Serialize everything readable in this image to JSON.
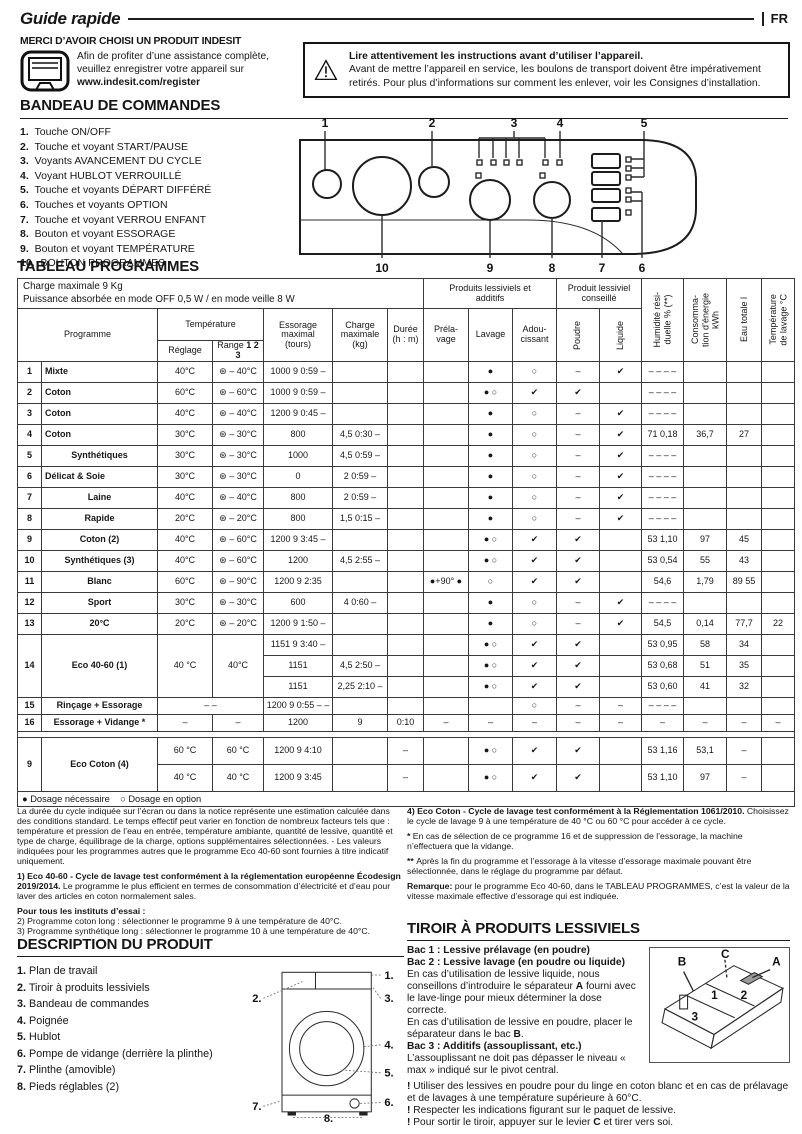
{
  "page": {
    "title": "Guide rapide",
    "lang_badge": "FR"
  },
  "intro": {
    "brand_line": "MERCI D’AVOIR CHOISI UN PRODUIT INDESIT",
    "register_text": "Afin de profiter d’une assistance complète,\nveuillez enregistrer votre appareil sur\n",
    "register_url": "www.indesit.com/register"
  },
  "warning": {
    "line1": "Lire attentivement les instructions avant d’utiliser l’appareil.",
    "line2": "Avant de mettre l’appareil en service, les boulons de transport doivent être impérativement retirés. Pour plus d’informations sur comment les enlever, voir les Consignes d’installation."
  },
  "sections": {
    "bandeau": "BANDEAU DE COMMANDES",
    "tableau": "TABLEAU PROGRAMMES",
    "description": "DESCRIPTION DU PRODUIT",
    "tiroir": "TIROIR À PRODUITS LESSIVIELS"
  },
  "bandeau": {
    "items": [
      {
        "n": "1.",
        "t": "Touche ON/OFF"
      },
      {
        "n": "2.",
        "t": "Touche et voyant START/PAUSE"
      },
      {
        "n": "3.",
        "t": "Voyants AVANCEMENT DU CYCLE"
      },
      {
        "n": "4.",
        "t": "Voyant HUBLOT VERROUILLÉ"
      },
      {
        "n": "5.",
        "t": "Touche et voyants DÉPART DIFFÉRÉ"
      },
      {
        "n": "6.",
        "t": "Touches et voyants OPTION"
      },
      {
        "n": "7.",
        "t": "Touche et voyant VERROU ENFANT"
      },
      {
        "n": "8.",
        "t": "Bouton et voyant ESSORAGE"
      },
      {
        "n": "9.",
        "t": "Bouton et voyant TEMPÉRATURE"
      },
      {
        "n": "10.",
        "t": "BOUTON PROGRAMMES"
      }
    ]
  },
  "panel": {
    "callouts_top": [
      "1",
      "2",
      "3",
      "4",
      "5"
    ],
    "callouts_bottom": [
      "10",
      "9",
      "8",
      "7",
      "6"
    ]
  },
  "table": {
    "info": "Charge maximale 9 Kg\nPuissance absorbée en mode OFF 0,5 W / en mode veille 8 W",
    "headers": {
      "programme": "Programme",
      "temperature": "Température",
      "reglage": "Réglage",
      "range": "Range ",
      "range_bold": "1 2 3",
      "essorage": "Essorage\nmaximal\n(tours)",
      "charge": "Charge\nmaximale\n(kg)",
      "duree": "Durée\n(h : m)",
      "produits": "Produits lessiviels et\nadditifs",
      "prelavage": "Préla-\nvage",
      "lavage": "Lavage",
      "adoucissant": "Adou-\ncissant",
      "conseille": "Produit lessiviel\nconseillé",
      "poudre": "Poudre",
      "liquide": "Liquide",
      "humidite": "Humidité rési-\nduelle % (**)",
      "consommation": "Consomma-\ntion d’énergie\nkWh",
      "eau": "Eau totale l",
      "temp_lavage": "Température\nde lavage °C"
    },
    "body": [
      {
        "cells": [
          {
            "t": "1",
            "cls": "b"
          },
          {
            "t": "Mixte",
            "cls": "b l"
          },
          "40°C",
          "⊛ – 40°C",
          {
            "t": "1000 9 0:59 –",
            "cls": "sp"
          },
          "",
          "",
          "",
          "●",
          "○",
          "–",
          "✔",
          {
            "t": "– – – –",
            "cls": "sp"
          },
          "",
          "",
          ""
        ]
      },
      {
        "cells": [
          {
            "t": "2",
            "cls": "b"
          },
          {
            "t": "Coton",
            "cls": "b l"
          },
          "60°C",
          "⊛ – 60°C",
          {
            "t": "1000 9 0:59 –",
            "cls": "sp"
          },
          "",
          "",
          "",
          {
            "t": "● ○",
            "cls": "sp"
          },
          "✔",
          "✔",
          "",
          {
            "t": "– – – –",
            "cls": "sp"
          },
          "",
          "",
          ""
        ]
      },
      {
        "cells": [
          {
            "t": "3",
            "cls": "b"
          },
          {
            "t": "Coton",
            "cls": "b l"
          },
          "40°C",
          "⊛ – 40°C",
          {
            "t": "1200 9 0:45 –",
            "cls": "sp"
          },
          "",
          "",
          "",
          "●",
          "○",
          "–",
          "✔",
          {
            "t": "– – – –",
            "cls": "sp"
          },
          "",
          "",
          ""
        ]
      },
      {
        "cells": [
          {
            "t": "4",
            "cls": "b"
          },
          {
            "t": "Coton",
            "cls": "b l"
          },
          "30°C",
          "⊛ – 30°C",
          "800",
          {
            "t": "4,5 0:30 –",
            "cls": "sp"
          },
          "",
          "",
          "●",
          "○",
          "–",
          "✔",
          {
            "t": "71 0,18",
            "cls": "sp"
          },
          "36,7",
          "27",
          ""
        ]
      },
      {
        "cells": [
          {
            "t": "5",
            "cls": "b"
          },
          {
            "t": "Synthétiques",
            "cls": "b"
          },
          "30°C",
          "⊛ – 30°C",
          "1000",
          {
            "t": "4,5 0:59 –",
            "cls": "sp"
          },
          "",
          "",
          "●",
          "○",
          "–",
          "✔",
          {
            "t": "– – – –",
            "cls": "sp"
          },
          "",
          "",
          ""
        ]
      },
      {
        "cells": [
          {
            "t": "6",
            "cls": "b"
          },
          {
            "t": "Délicat & Soie",
            "cls": "b l"
          },
          "30°C",
          "⊛ – 30°C",
          "0",
          {
            "t": "2 0:59 –",
            "cls": "sp"
          },
          "",
          "",
          "●",
          "○",
          "–",
          "✔",
          {
            "t": "– – – –",
            "cls": "sp"
          },
          "",
          "",
          ""
        ]
      },
      {
        "cells": [
          {
            "t": "7",
            "cls": "b"
          },
          {
            "t": "Laine",
            "cls": "b"
          },
          "40°C",
          "⊛ – 40°C",
          "800",
          {
            "t": "2 0:59 –",
            "cls": "sp"
          },
          "",
          "",
          "●",
          "○",
          "–",
          "✔",
          {
            "t": "– – – –",
            "cls": "sp"
          },
          "",
          "",
          ""
        ]
      },
      {
        "cells": [
          {
            "t": "8",
            "cls": "b"
          },
          {
            "t": "Rapide",
            "cls": "b"
          },
          "20°C",
          "⊛ – 20°C",
          "800",
          {
            "t": "1,5 0:15 –",
            "cls": "sp"
          },
          "",
          "",
          "●",
          "○",
          "–",
          "✔",
          {
            "t": "– – – –",
            "cls": "sp"
          },
          "",
          "",
          ""
        ]
      },
      {
        "cells": [
          {
            "t": "9",
            "cls": "b"
          },
          {
            "t": "Coton (2)",
            "cls": "b"
          },
          "40°C",
          "⊛ – 60°C",
          {
            "t": "1200 9 3:45 –",
            "cls": "sp"
          },
          "",
          "",
          "",
          {
            "t": "● ○",
            "cls": "sp"
          },
          "✔",
          "✔",
          "",
          {
            "t": "53 1,10",
            "cls": "sp"
          },
          "97",
          "45",
          ""
        ]
      },
      {
        "cells": [
          {
            "t": "10",
            "cls": "b"
          },
          {
            "t": "Synthétiques (3)",
            "cls": "b"
          },
          "40°C",
          "⊛ – 60°C",
          "1200",
          {
            "t": "4,5 2:55 –",
            "cls": "sp"
          },
          "",
          "",
          {
            "t": "● ○",
            "cls": "sp"
          },
          "✔",
          "✔",
          "",
          {
            "t": "53 0,54",
            "cls": "sp"
          },
          "55",
          "43",
          ""
        ]
      },
      {
        "cells": [
          {
            "t": "11",
            "cls": "b"
          },
          {
            "t": "Blanc",
            "cls": "b"
          },
          "60°C",
          "⊛ – 90°C",
          {
            "t": "1200 9 2:35",
            "cls": "sp"
          },
          "",
          "",
          {
            "t": "●+90° ●",
            "cls": "sp"
          },
          "○",
          "✔",
          "✔",
          "",
          "54,6",
          "1,79",
          {
            "t": "89 55",
            "cls": "sp"
          },
          ""
        ]
      },
      {
        "cells": [
          {
            "t": "12",
            "cls": "b"
          },
          {
            "t": "Sport",
            "cls": "b"
          },
          "30°C",
          "⊛ – 30°C",
          "600",
          {
            "t": "4 0:60 –",
            "cls": "sp"
          },
          "",
          "",
          "●",
          "○",
          "–",
          "✔",
          {
            "t": "– – – –",
            "cls": "sp"
          },
          "",
          "",
          ""
        ]
      },
      {
        "cells": [
          {
            "t": "13",
            "cls": "b"
          },
          {
            "t": "20°C",
            "cls": "b"
          },
          "20°C",
          "⊛ – 20°C",
          {
            "t": "1200 9 1:50 –",
            "cls": "sp"
          },
          "",
          "",
          "",
          "●",
          "○",
          "–",
          "✔",
          "54,5",
          "0,14",
          "77,7",
          "22"
        ]
      },
      {
        "cells": [
          {
            "t": "14",
            "cls": "b",
            "rs": 3
          },
          {
            "t": "Eco 40-60 (1)",
            "cls": "b",
            "rs": 3
          },
          {
            "t": "40 °C",
            "rs": 3
          },
          {
            "t": "40°C",
            "rs": 3
          },
          {
            "t": "1151 9 3:40 –",
            "cls": "sp"
          },
          "",
          "",
          "",
          {
            "t": "● ○",
            "cls": "sp"
          },
          "✔",
          "✔",
          "",
          {
            "t": "53 0,95",
            "cls": "sp"
          },
          "58",
          "34",
          ""
        ]
      },
      {
        "cells": [
          "1151",
          {
            "t": "4,5 2:50 –",
            "cls": "sp"
          },
          "",
          "",
          {
            "t": "● ○",
            "cls": "sp"
          },
          "✔",
          "✔",
          "",
          {
            "t": "53 0,68",
            "cls": "sp"
          },
          "51",
          "35",
          ""
        ]
      },
      {
        "cells": [
          "1151",
          {
            "t": "2,25 2:10 –",
            "cls": "sp"
          },
          "",
          "",
          {
            "t": "● ○",
            "cls": "sp"
          },
          "✔",
          "✔",
          "",
          {
            "t": "53 0,60",
            "cls": "sp"
          },
          "41",
          "32",
          ""
        ]
      },
      {
        "cls": "short",
        "cells": [
          {
            "t": "15",
            "cls": "b"
          },
          {
            "t": "Rinçage + Essorage",
            "cls": "b"
          },
          {
            "t": "– –",
            "cs": 2
          },
          {
            "t": "1200 9 0:55 – –",
            "cls": "sp"
          },
          "",
          "",
          "",
          "",
          "○",
          "–",
          "–",
          {
            "t": "– – – –",
            "cls": "sp"
          },
          "",
          "",
          ""
        ]
      },
      {
        "cls": "short",
        "cells": [
          {
            "t": "16",
            "cls": "b"
          },
          {
            "t": "Essorage + Vidange *",
            "cls": "b"
          },
          "–",
          "–",
          "1200",
          "9",
          "0:10",
          "–",
          "–",
          "–",
          "–",
          "–",
          "–",
          "–",
          "–",
          "–"
        ]
      },
      {
        "cls": "gap",
        "cells": [
          {
            "t": "",
            "cs": 16
          }
        ]
      },
      {
        "cls": "tall",
        "cells": [
          {
            "t": "9",
            "cls": "b",
            "rs": 2
          },
          {
            "t": "Eco Coton (4)",
            "cls": "b",
            "rs": 2
          },
          "60 °C",
          "60 °C",
          {
            "t": "1200 9 4:10",
            "cls": "sp"
          },
          "",
          "–",
          "",
          {
            "t": "● ○",
            "cls": "sp"
          },
          "✔",
          "✔",
          "",
          {
            "t": "53 1,16",
            "cls": "sp"
          },
          "53,1",
          "–",
          ""
        ]
      },
      {
        "cls": "tall",
        "cells": [
          "40 °C",
          "40 °C",
          {
            "t": "1200 9 3:45",
            "cls": "sp"
          },
          "",
          "–",
          "",
          {
            "t": "● ○",
            "cls": "sp"
          },
          "✔",
          "✔",
          "",
          {
            "t": "53 1,10",
            "cls": "sp"
          },
          "97",
          "–",
          ""
        ]
      },
      {
        "cls": "legendrow",
        "cells": [
          {
            "t": "● Dosage nécessaire    ○ Dosage en option",
            "cs": 16
          }
        ]
      }
    ]
  },
  "footnotes_left": [
    {
      "segs": [
        {
          "t": "La durée du cycle indiquée sur l’écran ou dans la notice représente une estimation calculée dans des conditions standard. Le temps effectif peut varier en fonction de nombreux facteurs tels que : température et pression de l’eau en entrée, température ambiante, quantité de lessive, quantité et type de charge, équilibrage de la charge, options supplémentaires sélectionnées. - Les valeurs indiquées pour les programmes autres que le programme Eco 40-60 sont fournies à titre indicatif uniquement."
        }
      ]
    },
    {
      "cls": "mt",
      "segs": [
        {
          "t": "1) Eco 40-60 - Cycle de lavage test conformément à la réglementation européenne Écodesign 2019/2014.",
          "b": true
        },
        {
          "t": " Le programme le plus efficient en termes de consommation d’électricité et d’eau pour laver des articles en coton normalement sales."
        }
      ]
    },
    {
      "cls": "mt",
      "segs": [
        {
          "t": "Pour tous les instituts d’essai :",
          "b": true
        }
      ]
    },
    {
      "segs": [
        {
          "t": "2)  Programme coton long : sélectionner le programme 9 à une température de 40°C."
        }
      ]
    },
    {
      "segs": [
        {
          "t": "3)  Programme synthétique long : sélectionner le programme 10 à une température de 40°C."
        }
      ]
    }
  ],
  "footnotes_right": [
    {
      "segs": [
        {
          "t": "4) Eco Coton -  Cycle de lavage test conformément à la Réglementation 1061/2010.",
          "b": true
        },
        {
          "t": " Choisissez le cycle de lavage 9 à une température de 40 °C ou 60 °C pour accéder à ce cycle."
        }
      ]
    },
    {
      "cls": "mt",
      "segs": [
        {
          "t": "* ",
          "b": true
        },
        {
          "t": "En cas de sélection de ce programme 16 et de suppression de l’essorage, la machine n’effectuera que la vidange."
        }
      ]
    },
    {
      "cls": "mt",
      "segs": [
        {
          "t": "** ",
          "b": true
        },
        {
          "t": "Après la fin du programme et l’essorage à la vitesse d’essorage maximale pouvant être sélectionnée, dans le réglage du programme par défaut."
        }
      ]
    },
    {
      "cls": "mt",
      "segs": [
        {
          "t": "Remarque:",
          "b": true
        },
        {
          "t": " pour le programme Eco 40-60, dans le TABLEAU PROGRAMMES, c’est la valeur de la vitesse maximale effective d’essorage qui est indiquée."
        }
      ]
    }
  ],
  "description": {
    "items": [
      {
        "n": "1.",
        "t": "Plan de travail"
      },
      {
        "n": "2.",
        "t": "Tiroir à produits lessiviels"
      },
      {
        "n": "3.",
        "t": "Bandeau de commandes"
      },
      {
        "n": "4.",
        "t": "Poignée"
      },
      {
        "n": "5.",
        "t": "Hublot"
      },
      {
        "n": "6.",
        "t": "Pompe de vidange (derrière la plinthe)"
      },
      {
        "n": "7.",
        "t": "Plinthe (amovible)"
      },
      {
        "n": "8.",
        "t": "Pieds réglables (2)"
      }
    ],
    "callouts": [
      "1.",
      "2.",
      "3.",
      "4.",
      "5.",
      "6.",
      "7.",
      "8."
    ]
  },
  "tiroir": {
    "paras": [
      {
        "segs": [
          {
            "t": "Bac 1 : Lessive prélavage (en poudre)",
            "b": true
          }
        ]
      },
      {
        "segs": [
          {
            "t": "Bac 2 : Lessive lavage (en poudre ou liquide)",
            "b": true
          }
        ]
      },
      {
        "segs": [
          {
            "t": "En cas d’utilisation de lessive liquide, nous conseillons d’introduire le séparateur "
          },
          {
            "t": "A",
            "b": true
          },
          {
            "t": " fourni avec le lave-linge pour mieux déterminer la dose correcte."
          }
        ]
      },
      {
        "segs": [
          {
            "t": "En cas d’utilisation de lessive en poudre, placer le séparateur dans le bac "
          },
          {
            "t": "B",
            "b": true
          },
          {
            "t": "."
          }
        ]
      },
      {
        "segs": [
          {
            "t": "Bac 3 : Additifs (assouplissant, etc.)",
            "b": true
          }
        ]
      },
      {
        "segs": [
          {
            "t": "L’assouplissant ne doit pas dépasser le niveau « max » indiqué sur le pivot central."
          }
        ]
      }
    ],
    "notes": [
      {
        "segs": [
          {
            "t": "! ",
            "b": true
          },
          {
            "t": "Utiliser des lessives en poudre pour du linge en coton blanc et en cas de prélavage et de lavages à une température supérieure à 60°C."
          }
        ]
      },
      {
        "segs": [
          {
            "t": "! ",
            "b": true
          },
          {
            "t": "Respecter les indications figurant sur le paquet de lessive."
          }
        ]
      },
      {
        "segs": [
          {
            "t": "! ",
            "b": true
          },
          {
            "t": "Pour sortir le tiroir, appuyer sur le levier "
          },
          {
            "t": "C",
            "b": true
          },
          {
            "t": " et tirer vers soi."
          }
        ]
      }
    ],
    "diagram": {
      "a": "A",
      "b": "B",
      "c": "C",
      "n1": "1",
      "n2": "2",
      "n3": "3"
    }
  }
}
